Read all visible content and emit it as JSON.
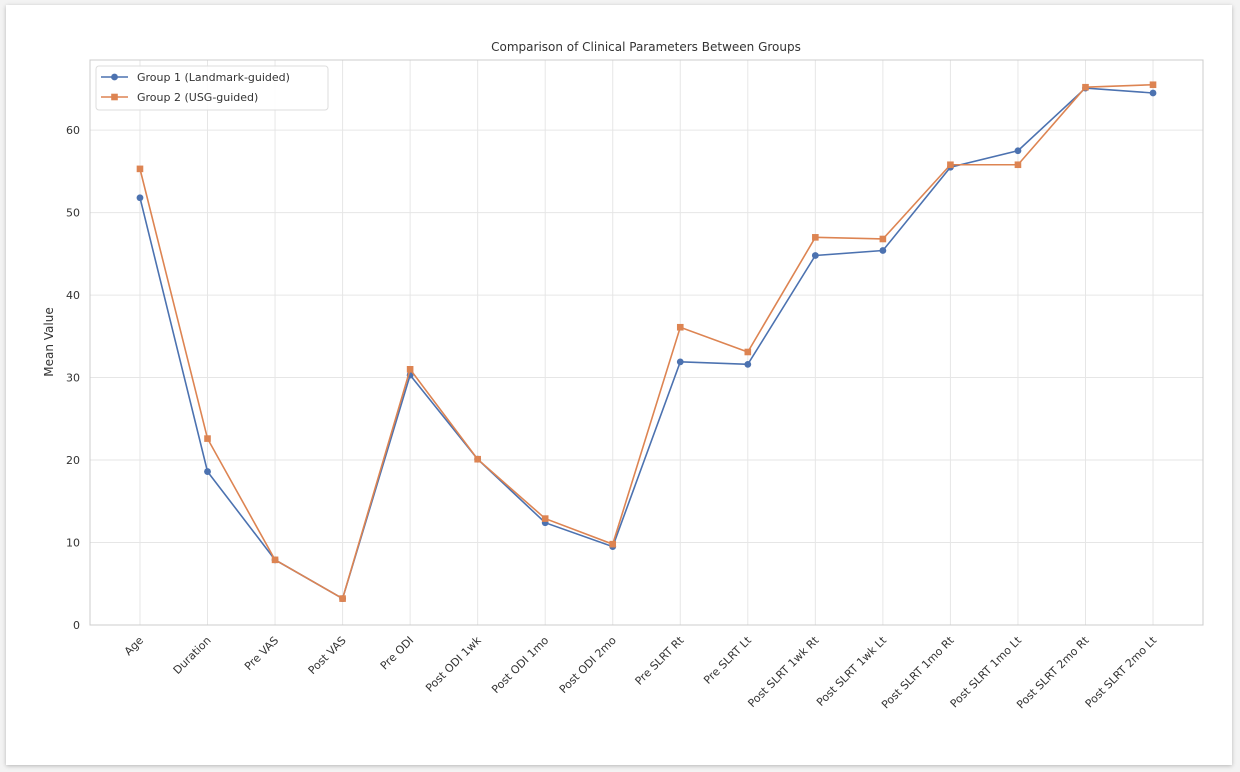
{
  "chart_data": {
    "type": "line",
    "title": "Comparison of Clinical Parameters Between Groups",
    "xlabel": "",
    "ylabel": "Mean Value",
    "ylim": [
      0,
      68.5
    ],
    "yticks": [
      0,
      10,
      20,
      30,
      40,
      50,
      60
    ],
    "grid": true,
    "legend_position": "top-left",
    "categories": [
      "Age",
      "Duration",
      "Pre VAS",
      "Post VAS",
      "Pre ODI",
      "Post ODI 1wk",
      "Post ODI 1mo",
      "Post ODI 2mo",
      "Pre SLRT Rt",
      "Pre SLRT Lt",
      "Post SLRT 1wk Rt",
      "Post SLRT 1wk Lt",
      "Post SLRT 1mo Rt",
      "Post SLRT 1mo Lt",
      "Post SLRT 2mo Rt",
      "Post SLRT 2mo Lt"
    ],
    "series": [
      {
        "name": "Group 1 (Landmark-guided)",
        "color": "#4c72b0",
        "marker": "circle",
        "values": [
          51.8,
          18.6,
          7.9,
          3.2,
          30.3,
          20.1,
          12.4,
          9.5,
          31.9,
          31.6,
          44.8,
          45.4,
          55.5,
          57.5,
          65.1,
          64.5
        ]
      },
      {
        "name": "Group 2 (USG-guided)",
        "color": "#dd8452",
        "marker": "square",
        "values": [
          55.3,
          22.6,
          7.9,
          3.2,
          31.0,
          20.1,
          12.9,
          9.8,
          36.1,
          33.1,
          47.0,
          46.8,
          55.8,
          55.8,
          65.2,
          65.5
        ]
      }
    ]
  }
}
